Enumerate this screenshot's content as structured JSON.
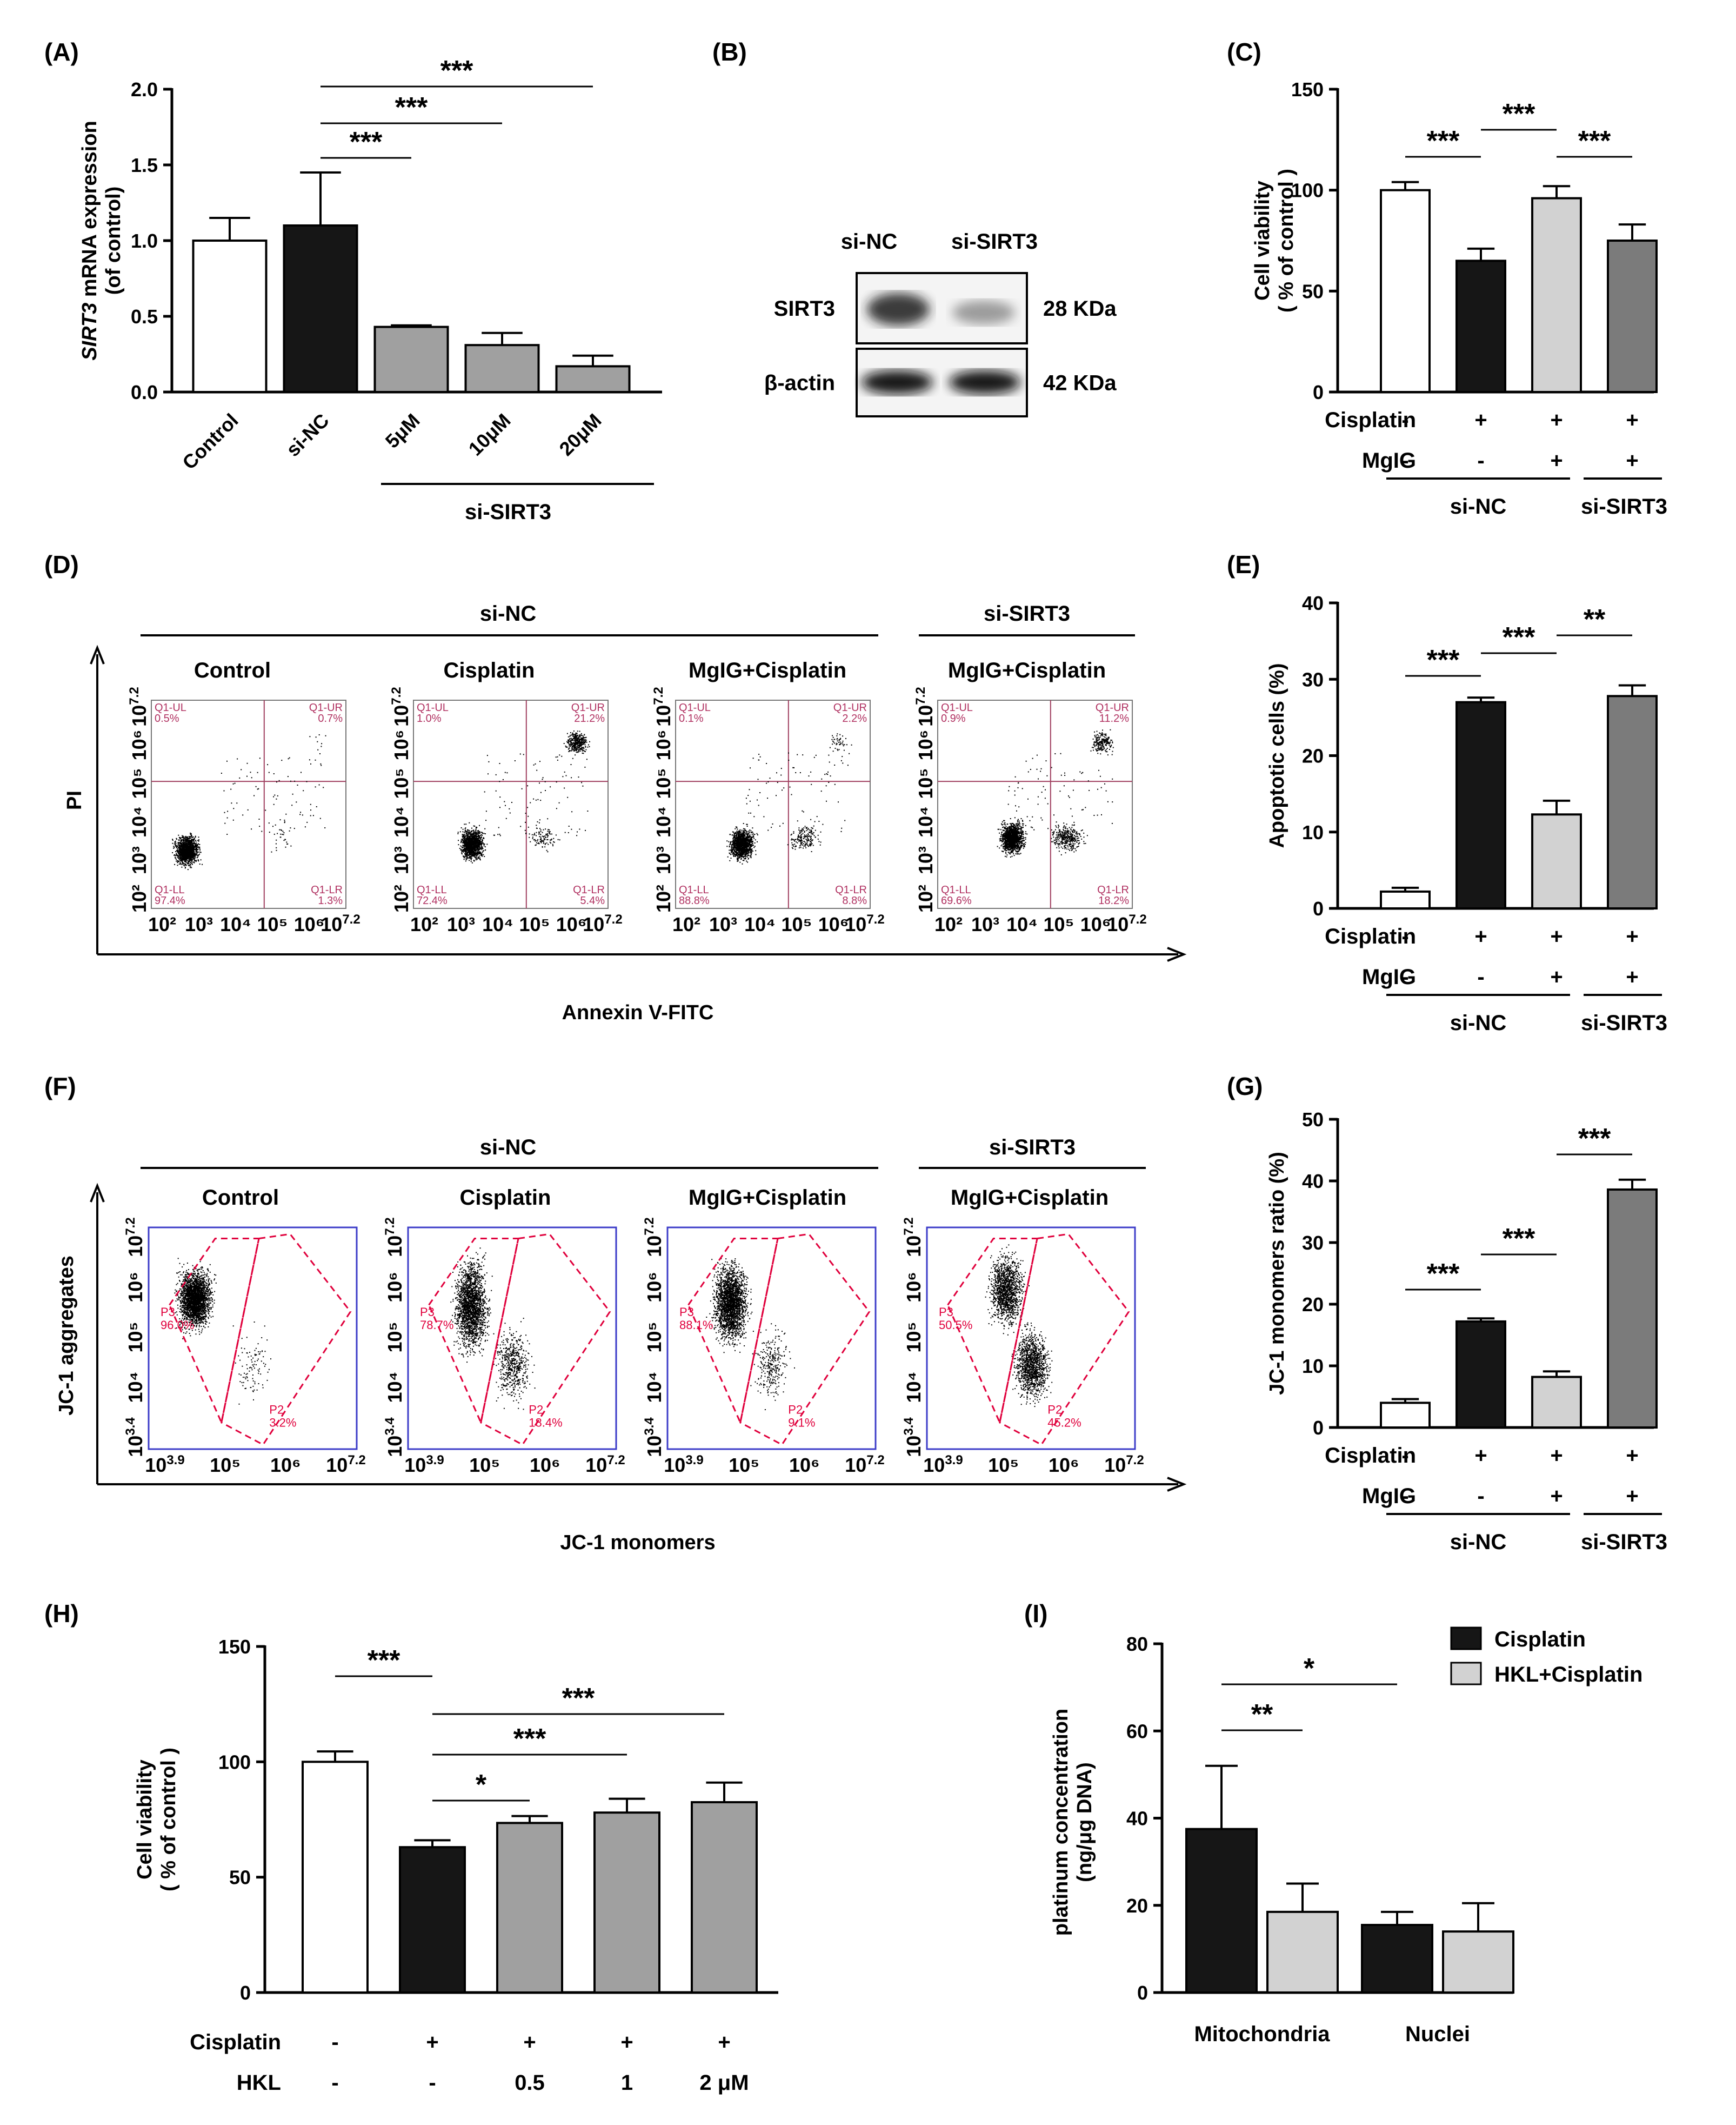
{
  "colors": {
    "white": "#ffffff",
    "black": "#161616",
    "light": "#d2d2d2",
    "mid": "#a0a0a0",
    "dark": "#7b7b7b",
    "quad": "#a04060",
    "gate": "#e0003c",
    "plotframe": "#3c3cc8"
  },
  "panels": {
    "A": {
      "label": "(A)",
      "chart_data": {
        "type": "bar",
        "ylabel_italic": "SIRT3",
        "ylabel_rest": " mRNA expression",
        "ylabel2": "(of control)",
        "categories": [
          "Control",
          "si-NC",
          "5μM",
          "10μM",
          "20μM"
        ],
        "values": [
          1.0,
          1.1,
          0.43,
          0.31,
          0.17
        ],
        "errors": [
          0.15,
          0.35,
          0.01,
          0.08,
          0.07
        ],
        "colors": [
          "white",
          "black",
          "mid",
          "mid",
          "mid"
        ],
        "ylim": [
          0,
          2.0
        ],
        "yticks": [
          "0.0",
          "0.5",
          "1.0",
          "1.5",
          "2.0"
        ],
        "ytickvals": [
          0,
          0.5,
          1.0,
          1.5,
          2.0
        ],
        "group_label": "si-SIRT3",
        "sig": [
          {
            "from": 1,
            "to": 2,
            "text": "***"
          },
          {
            "from": 1,
            "to": 3,
            "text": "***"
          },
          {
            "from": 1,
            "to": 4,
            "text": "***"
          }
        ]
      }
    },
    "B": {
      "label": "(B)",
      "lanes": [
        "si-NC",
        "si-SIRT3"
      ],
      "rows": [
        "SIRT3",
        "β-actin"
      ],
      "sizes": [
        "28 KDa",
        "42 KDa"
      ]
    },
    "C": {
      "label": "(C)",
      "chart_data": {
        "type": "bar",
        "ylabel": "Cell viability",
        "ylabel2": "( % of control )",
        "values": [
          100,
          65,
          96,
          75
        ],
        "errors": [
          4,
          6,
          6,
          8
        ],
        "colors": [
          "white",
          "black",
          "light",
          "dark"
        ],
        "ylim": [
          0,
          150
        ],
        "yticks": [
          "0",
          "50",
          "100",
          "150"
        ],
        "ytickvals": [
          0,
          50,
          100,
          150
        ],
        "cond_rows": [
          {
            "name": "Cisplatin",
            "marks": [
              "-",
              "+",
              "+",
              "+"
            ]
          },
          {
            "name": "MgIG",
            "marks": [
              "-",
              "-",
              "+",
              "+"
            ]
          }
        ],
        "groups": [
          "si-NC",
          "si-SIRT3"
        ],
        "sig": [
          {
            "from": 0,
            "to": 1,
            "text": "***"
          },
          {
            "from": 1,
            "to": 2,
            "text": "***"
          },
          {
            "from": 2,
            "to": 3,
            "text": "***"
          }
        ]
      }
    },
    "D": {
      "label": "(D)",
      "group1": "si-NC",
      "group2": "si-SIRT3",
      "ylabel": "PI",
      "xlabel": "Annexin V-FITC",
      "titles": [
        "Control",
        "Cisplatin",
        "MgIG+Cisplatin",
        "MgIG+Cisplatin"
      ],
      "ticks": [
        "10²",
        "10³",
        "10⁴",
        "10⁵",
        "10⁶",
        "10^7.2"
      ],
      "quad_names": [
        "Q1-UL",
        "Q1-UR",
        "Q1-LL",
        "Q1-LR"
      ],
      "quads": [
        [
          "0.5%",
          "0.7%",
          "97.4%",
          "1.3%"
        ],
        [
          "1.0%",
          "21.2%",
          "72.4%",
          "5.4%"
        ],
        [
          "0.1%",
          "2.2%",
          "88.8%",
          "8.8%"
        ],
        [
          "0.9%",
          "11.2%",
          "69.6%",
          "18.2%"
        ]
      ]
    },
    "E": {
      "label": "(E)",
      "chart_data": {
        "type": "bar",
        "ylabel": "Apoptotic cells (%)",
        "values": [
          2.2,
          27,
          12.3,
          27.8
        ],
        "errors": [
          0.5,
          0.6,
          1.8,
          1.4
        ],
        "colors": [
          "white",
          "black",
          "light",
          "dark"
        ],
        "ylim": [
          0,
          40
        ],
        "yticks": [
          "0",
          "10",
          "20",
          "30",
          "40"
        ],
        "ytickvals": [
          0,
          10,
          20,
          30,
          40
        ],
        "cond_rows": [
          {
            "name": "Cisplatin",
            "marks": [
              "-",
              "+",
              "+",
              "+"
            ]
          },
          {
            "name": "MgIG",
            "marks": [
              "-",
              "-",
              "+",
              "+"
            ]
          }
        ],
        "groups": [
          "si-NC",
          "si-SIRT3"
        ],
        "sig": [
          {
            "from": 0,
            "to": 1,
            "text": "***"
          },
          {
            "from": 1,
            "to": 2,
            "text": "***"
          },
          {
            "from": 2,
            "to": 3,
            "text": "**"
          }
        ]
      }
    },
    "F": {
      "label": "(F)",
      "group1": "si-NC",
      "group2": "si-SIRT3",
      "ylabel": "JC-1 aggregates",
      "xlabel": "JC-1 monomers",
      "titles": [
        "Control",
        "Cisplatin",
        "MgIG+Cisplatin",
        "MgIG+Cisplatin"
      ],
      "yticks": [
        "10^3.4",
        "10⁴",
        "10⁵",
        "10⁶",
        "10^7.2"
      ],
      "xticks": [
        "10^3.9",
        "10⁵",
        "10⁶",
        "10^7.2"
      ],
      "gates": [
        [
          "P3",
          "96.0%",
          "P2",
          "3.2%"
        ],
        [
          "P3",
          "78.7%",
          "P2",
          "18.4%"
        ],
        [
          "P3",
          "88.1%",
          "P2",
          "9.1%"
        ],
        [
          "P3",
          "50.5%",
          "P2",
          "45.2%"
        ]
      ]
    },
    "G": {
      "label": "(G)",
      "chart_data": {
        "type": "bar",
        "ylabel": "JC-1 monomers ratio (%)",
        "values": [
          4,
          17.2,
          8.2,
          38.6
        ],
        "errors": [
          0.6,
          0.5,
          0.9,
          1.6
        ],
        "colors": [
          "white",
          "black",
          "light",
          "dark"
        ],
        "ylim": [
          0,
          50
        ],
        "yticks": [
          "0",
          "10",
          "20",
          "30",
          "40",
          "50"
        ],
        "ytickvals": [
          0,
          10,
          20,
          30,
          40,
          50
        ],
        "cond_rows": [
          {
            "name": "Cisplatin",
            "marks": [
              "-",
              "+",
              "+",
              "+"
            ]
          },
          {
            "name": "MgIG",
            "marks": [
              "-",
              "-",
              "+",
              "+"
            ]
          }
        ],
        "groups": [
          "si-NC",
          "si-SIRT3"
        ],
        "sig": [
          {
            "from": 0,
            "to": 1,
            "text": "***"
          },
          {
            "from": 1,
            "to": 2,
            "text": "***"
          },
          {
            "from": 2,
            "to": 3,
            "text": "***"
          }
        ]
      }
    },
    "H": {
      "label": "(H)",
      "chart_data": {
        "type": "bar",
        "ylabel": "Cell viability",
        "ylabel2": "( % of control )",
        "values": [
          100,
          63,
          73.5,
          78,
          82.5
        ],
        "errors": [
          4.5,
          3,
          3,
          6,
          8.5
        ],
        "colors": [
          "white",
          "black",
          "mid",
          "mid",
          "mid"
        ],
        "ylim": [
          0,
          150
        ],
        "yticks": [
          "0",
          "50",
          "100",
          "150"
        ],
        "ytickvals": [
          0,
          50,
          100,
          150
        ],
        "cond_rows": [
          {
            "name": "Cisplatin",
            "marks": [
              "-",
              "+",
              "+",
              "+",
              "+"
            ]
          },
          {
            "name": "HKL",
            "marks": [
              "-",
              "-",
              "0.5",
              "1",
              "2 μM"
            ]
          }
        ],
        "sig": [
          {
            "from": 0,
            "to": 1,
            "text": "***"
          },
          {
            "from": 1,
            "to": 2,
            "text": "*"
          },
          {
            "from": 1,
            "to": 3,
            "text": "***"
          },
          {
            "from": 1,
            "to": 4,
            "text": "***"
          }
        ]
      }
    },
    "I": {
      "label": "(I)",
      "chart_data": {
        "type": "bar",
        "ylabel": "platinum concentration",
        "ylabel2": "(ng/μg DNA)",
        "categories": [
          "Mitochondria",
          "Nuclei"
        ],
        "series": [
          {
            "name": "Cisplatin",
            "color": "black",
            "values": [
              37.5,
              15.5
            ],
            "errors": [
              14.5,
              3
            ]
          },
          {
            "name": "HKL+Cisplatin",
            "color": "light",
            "values": [
              18.5,
              14
            ],
            "errors": [
              6.5,
              6.5
            ]
          }
        ],
        "ylim": [
          0,
          80
        ],
        "yticks": [
          "0",
          "20",
          "40",
          "60",
          "80"
        ],
        "ytickvals": [
          0,
          20,
          40,
          60,
          80
        ],
        "sig": [
          {
            "text": "**"
          },
          {
            "text": "*"
          }
        ]
      }
    }
  }
}
